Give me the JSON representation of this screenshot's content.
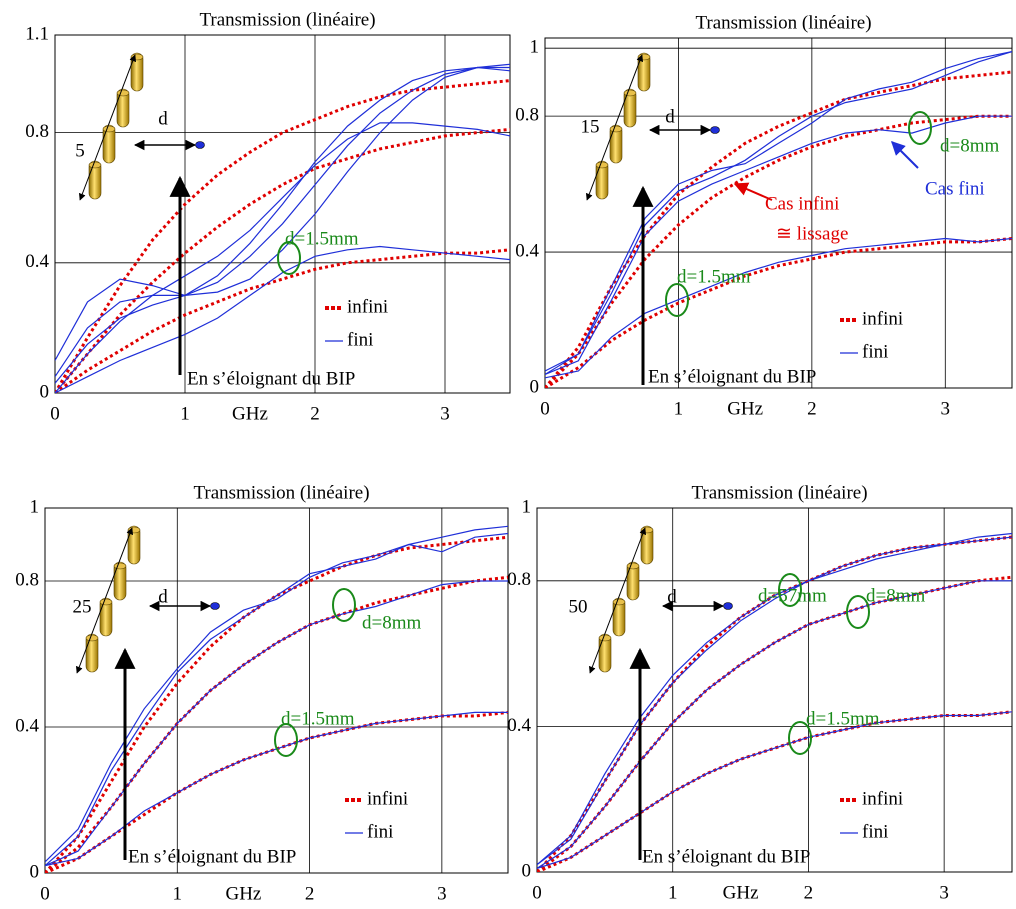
{
  "chart_data": [
    {
      "type": "line",
      "title": "Transmission (linéaire)",
      "xlabel": "GHz",
      "x": [
        0,
        0.25,
        0.5,
        0.75,
        1,
        1.25,
        1.5,
        1.75,
        2,
        2.25,
        2.5,
        2.75,
        3,
        3.25,
        3.5
      ],
      "xlim": [
        0,
        3.5
      ],
      "xticks": [
        0,
        1,
        2,
        3
      ],
      "ylim": [
        0,
        1.1
      ],
      "yticks": [
        0,
        0.4,
        0.8,
        1.1
      ],
      "grid": true,
      "series": [
        {
          "name": "infini",
          "color": "#e00000",
          "style": "dotted",
          "curves": [
            [
              0,
              0.17,
              0.33,
              0.47,
              0.58,
              0.67,
              0.74,
              0.8,
              0.84,
              0.88,
              0.91,
              0.93,
              0.94,
              0.95,
              0.96
            ],
            [
              0,
              0.12,
              0.24,
              0.34,
              0.43,
              0.51,
              0.58,
              0.64,
              0.69,
              0.72,
              0.75,
              0.77,
              0.79,
              0.8,
              0.81
            ],
            [
              0,
              0.07,
              0.13,
              0.19,
              0.24,
              0.28,
              0.32,
              0.35,
              0.38,
              0.4,
              0.41,
              0.42,
              0.43,
              0.43,
              0.44
            ]
          ]
        },
        {
          "name": "fini",
          "color": "#1f2fd8",
          "style": "solid",
          "curves": [
            [
              0.1,
              0.28,
              0.35,
              0.33,
              0.3,
              0.31,
              0.35,
              0.44,
              0.55,
              0.68,
              0.8,
              0.9,
              0.97,
              1.0,
              1.01
            ],
            [
              0.05,
              0.2,
              0.28,
              0.3,
              0.3,
              0.34,
              0.42,
              0.52,
              0.64,
              0.76,
              0.86,
              0.93,
              0.98,
              1.0,
              1.0
            ],
            [
              0.03,
              0.15,
              0.23,
              0.27,
              0.3,
              0.36,
              0.46,
              0.58,
              0.71,
              0.82,
              0.9,
              0.96,
              0.99,
              1.0,
              0.99
            ],
            [
              0,
              0.12,
              0.22,
              0.3,
              0.36,
              0.42,
              0.5,
              0.6,
              0.7,
              0.78,
              0.83,
              0.83,
              0.82,
              0.81,
              0.79
            ],
            [
              0,
              0.05,
              0.1,
              0.14,
              0.18,
              0.23,
              0.3,
              0.37,
              0.42,
              0.44,
              0.45,
              0.44,
              0.43,
              0.42,
              0.41
            ]
          ]
        }
      ],
      "annotations": [
        {
          "text": "5",
          "color": "#000000"
        },
        {
          "text": "d",
          "color": "#000000"
        },
        {
          "text": "d=1.5mm",
          "color": "#1a8a1a"
        },
        {
          "text": "En s’éloignant du BIP",
          "color": "#000000"
        }
      ]
    },
    {
      "type": "line",
      "title": "Transmission (linéaire)",
      "xlabel": "GHz",
      "x": [
        0,
        0.25,
        0.5,
        0.75,
        1,
        1.25,
        1.5,
        1.75,
        2,
        2.25,
        2.5,
        2.75,
        3,
        3.25,
        3.5
      ],
      "xlim": [
        0,
        3.5
      ],
      "xticks": [
        0,
        1,
        2,
        3
      ],
      "ylim": [
        0,
        1.03
      ],
      "yticks": [
        0,
        0.4,
        0.8,
        1
      ],
      "grid": true,
      "series": [
        {
          "name": "infini",
          "color": "#e00000",
          "style": "dotted",
          "curves": [
            [
              0,
              0.12,
              0.3,
              0.45,
              0.57,
              0.65,
              0.72,
              0.77,
              0.81,
              0.85,
              0.87,
              0.89,
              0.91,
              0.92,
              0.93
            ],
            [
              0,
              0.1,
              0.25,
              0.38,
              0.48,
              0.56,
              0.62,
              0.67,
              0.71,
              0.74,
              0.76,
              0.78,
              0.79,
              0.8,
              0.8
            ],
            [
              0,
              0.06,
              0.14,
              0.2,
              0.25,
              0.29,
              0.33,
              0.36,
              0.38,
              0.4,
              0.41,
              0.42,
              0.43,
              0.43,
              0.44
            ]
          ]
        },
        {
          "name": "fini",
          "color": "#1f2fd8",
          "style": "solid",
          "curves": [
            [
              0.05,
              0.1,
              0.3,
              0.5,
              0.6,
              0.64,
              0.66,
              0.72,
              0.78,
              0.85,
              0.88,
              0.9,
              0.94,
              0.97,
              0.99
            ],
            [
              0.04,
              0.1,
              0.28,
              0.48,
              0.58,
              0.62,
              0.67,
              0.74,
              0.8,
              0.84,
              0.86,
              0.88,
              0.92,
              0.96,
              0.99
            ],
            [
              0.04,
              0.08,
              0.26,
              0.45,
              0.55,
              0.6,
              0.64,
              0.68,
              0.72,
              0.75,
              0.76,
              0.75,
              0.78,
              0.8,
              0.8
            ],
            [
              0.03,
              0.05,
              0.15,
              0.22,
              0.26,
              0.3,
              0.34,
              0.37,
              0.39,
              0.41,
              0.42,
              0.43,
              0.44,
              0.43,
              0.44
            ]
          ]
        }
      ],
      "annotations": [
        {
          "text": "15",
          "color": "#000000"
        },
        {
          "text": "d",
          "color": "#000000"
        },
        {
          "text": "d=8mm",
          "color": "#1a8a1a"
        },
        {
          "text": "Cas fini",
          "color": "#1f2fd8"
        },
        {
          "text": "Cas infini",
          "color": "#e00000"
        },
        {
          "text": "≅ lissage",
          "color": "#e00000"
        },
        {
          "text": "d=1.5mm",
          "color": "#1a8a1a"
        },
        {
          "text": "En s’éloignant du BIP",
          "color": "#000000"
        }
      ]
    },
    {
      "type": "line",
      "title": "Transmission (linéaire)",
      "xlabel": "GHz",
      "x": [
        0,
        0.25,
        0.5,
        0.75,
        1,
        1.25,
        1.5,
        1.75,
        2,
        2.25,
        2.5,
        2.75,
        3,
        3.25,
        3.5
      ],
      "xlim": [
        0,
        3.5
      ],
      "xticks": [
        0,
        1,
        2,
        3
      ],
      "ylim": [
        0,
        1
      ],
      "yticks": [
        0,
        0.4,
        0.8,
        1
      ],
      "grid": true,
      "series": [
        {
          "name": "infini",
          "color": "#e00000",
          "style": "dotted",
          "curves": [
            [
              0,
              0.1,
              0.25,
              0.4,
              0.52,
              0.62,
              0.7,
              0.76,
              0.8,
              0.84,
              0.87,
              0.89,
              0.9,
              0.91,
              0.92
            ],
            [
              0,
              0.07,
              0.18,
              0.3,
              0.41,
              0.5,
              0.57,
              0.63,
              0.68,
              0.71,
              0.74,
              0.76,
              0.78,
              0.8,
              0.81
            ],
            [
              0,
              0.04,
              0.1,
              0.16,
              0.22,
              0.27,
              0.31,
              0.34,
              0.37,
              0.39,
              0.41,
              0.42,
              0.43,
              0.43,
              0.44
            ]
          ]
        },
        {
          "name": "fini",
          "color": "#1f2fd8",
          "style": "solid",
          "curves": [
            [
              0.03,
              0.12,
              0.3,
              0.45,
              0.56,
              0.66,
              0.72,
              0.75,
              0.81,
              0.85,
              0.87,
              0.9,
              0.92,
              0.94,
              0.95
            ],
            [
              0.02,
              0.1,
              0.28,
              0.42,
              0.55,
              0.64,
              0.7,
              0.76,
              0.82,
              0.84,
              0.86,
              0.9,
              0.88,
              0.92,
              0.93
            ],
            [
              0.02,
              0.06,
              0.18,
              0.3,
              0.41,
              0.5,
              0.57,
              0.63,
              0.68,
              0.71,
              0.73,
              0.76,
              0.79,
              0.8,
              0.8
            ],
            [
              0.02,
              0.04,
              0.1,
              0.17,
              0.22,
              0.27,
              0.31,
              0.34,
              0.37,
              0.39,
              0.41,
              0.42,
              0.43,
              0.44,
              0.44
            ]
          ]
        }
      ],
      "annotations": [
        {
          "text": "25",
          "color": "#000000"
        },
        {
          "text": "d",
          "color": "#000000"
        },
        {
          "text": "d=8mm",
          "color": "#1a8a1a"
        },
        {
          "text": "d=1.5mm",
          "color": "#1a8a1a"
        },
        {
          "text": "En s’éloignant du BIP",
          "color": "#000000"
        }
      ]
    },
    {
      "type": "line",
      "title": "Transmission (linéaire)",
      "xlabel": "GHz",
      "x": [
        0,
        0.25,
        0.5,
        0.75,
        1,
        1.25,
        1.5,
        1.75,
        2,
        2.25,
        2.5,
        2.75,
        3,
        3.25,
        3.5
      ],
      "xlim": [
        0,
        3.5
      ],
      "xticks": [
        0,
        1,
        2,
        3
      ],
      "ylim": [
        0,
        1
      ],
      "yticks": [
        0,
        0.4,
        0.8,
        1
      ],
      "grid": true,
      "series": [
        {
          "name": "infini",
          "color": "#e00000",
          "style": "dotted",
          "curves": [
            [
              0,
              0.1,
              0.25,
              0.4,
              0.52,
              0.62,
              0.7,
              0.76,
              0.8,
              0.84,
              0.87,
              0.89,
              0.9,
              0.91,
              0.92
            ],
            [
              0,
              0.07,
              0.18,
              0.3,
              0.41,
              0.5,
              0.57,
              0.63,
              0.68,
              0.71,
              0.74,
              0.76,
              0.78,
              0.8,
              0.81
            ],
            [
              0,
              0.04,
              0.1,
              0.16,
              0.22,
              0.27,
              0.31,
              0.34,
              0.37,
              0.39,
              0.41,
              0.42,
              0.43,
              0.43,
              0.44
            ]
          ]
        },
        {
          "name": "fini",
          "color": "#1f2fd8",
          "style": "solid",
          "curves": [
            [
              0.02,
              0.1,
              0.27,
              0.42,
              0.54,
              0.63,
              0.7,
              0.76,
              0.8,
              0.84,
              0.87,
              0.89,
              0.9,
              0.92,
              0.93
            ],
            [
              0.02,
              0.09,
              0.25,
              0.4,
              0.52,
              0.61,
              0.69,
              0.75,
              0.8,
              0.83,
              0.86,
              0.88,
              0.9,
              0.91,
              0.92
            ],
            [
              0.01,
              0.07,
              0.18,
              0.3,
              0.41,
              0.5,
              0.57,
              0.63,
              0.68,
              0.71,
              0.74,
              0.76,
              0.78,
              0.8,
              0.8
            ],
            [
              0.01,
              0.04,
              0.1,
              0.16,
              0.22,
              0.27,
              0.31,
              0.34,
              0.37,
              0.39,
              0.41,
              0.42,
              0.43,
              0.43,
              0.44
            ]
          ]
        }
      ],
      "annotations": [
        {
          "text": "50",
          "color": "#000000"
        },
        {
          "text": "d",
          "color": "#000000"
        },
        {
          "text": "d=57mm",
          "color": "#1a8a1a"
        },
        {
          "text": "d=8mm",
          "color": "#1a8a1a"
        },
        {
          "text": "d=1.5mm",
          "color": "#1a8a1a"
        },
        {
          "text": "En s’éloignant du BIP",
          "color": "#000000"
        }
      ]
    }
  ]
}
